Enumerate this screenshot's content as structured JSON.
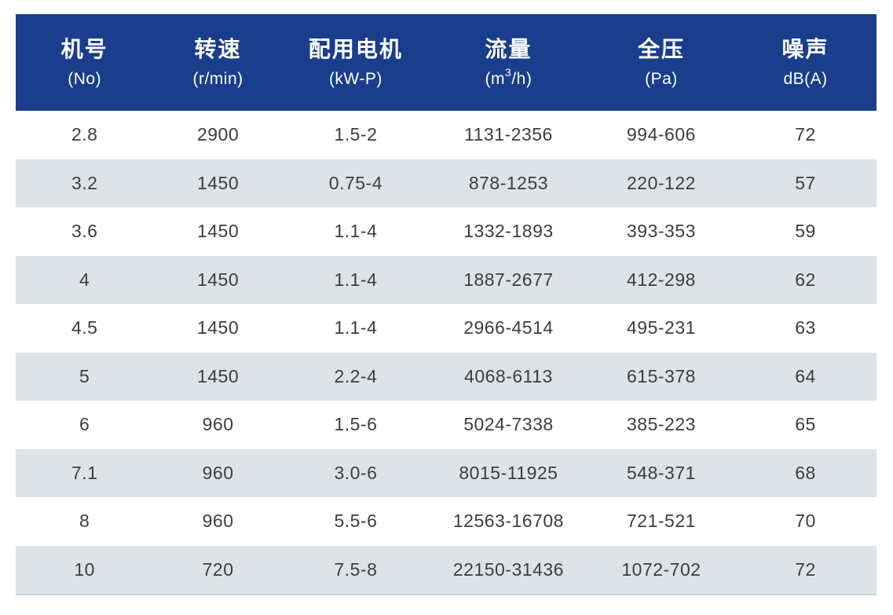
{
  "colors": {
    "header_bg": "#1a3d8c",
    "header_text": "#ffffff",
    "row_bg": "#ffffff",
    "row_alt_bg": "#dde3e6",
    "cell_text": "#3d3d3d"
  },
  "table": {
    "columns": [
      {
        "zh": "机号",
        "unit": "(No)"
      },
      {
        "zh": "转速",
        "unit": "(r/min)"
      },
      {
        "zh": "配用电机",
        "unit": "(kW-P)"
      },
      {
        "zh": "流量",
        "unit_pre": "(m",
        "unit_sup": "3",
        "unit_post": "/h)"
      },
      {
        "zh": "全压",
        "unit": "(Pa)"
      },
      {
        "zh": "噪声",
        "unit": "dB(A)"
      }
    ],
    "rows": [
      [
        "2.8",
        "2900",
        "1.5-2",
        "1131-2356",
        "994-606",
        "72"
      ],
      [
        "3.2",
        "1450",
        "0.75-4",
        "878-1253",
        "220-122",
        "57"
      ],
      [
        "3.6",
        "1450",
        "1.1-4",
        "1332-1893",
        "393-353",
        "59"
      ],
      [
        "4",
        "1450",
        "1.1-4",
        "1887-2677",
        "412-298",
        "62"
      ],
      [
        "4.5",
        "1450",
        "1.1-4",
        "2966-4514",
        "495-231",
        "63"
      ],
      [
        "5",
        "1450",
        "2.2-4",
        "4068-6113",
        "615-378",
        "64"
      ],
      [
        "6",
        "960",
        "1.5-6",
        "5024-7338",
        "385-223",
        "65"
      ],
      [
        "7.1",
        "960",
        "3.0-6",
        "8015-11925",
        "548-371",
        "68"
      ],
      [
        "8",
        "960",
        "5.5-6",
        "12563-16708",
        "721-521",
        "70"
      ],
      [
        "10",
        "720",
        "7.5-8",
        "22150-31436",
        "1072-702",
        "72"
      ]
    ]
  }
}
